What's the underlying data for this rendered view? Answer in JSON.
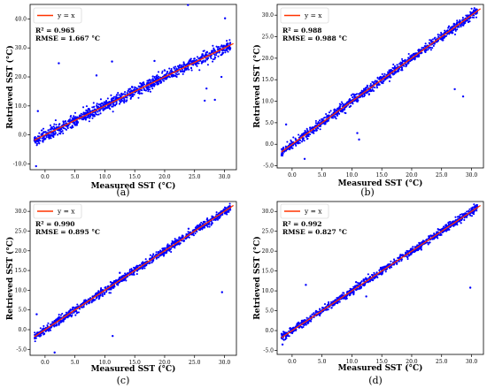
{
  "chart_data": [
    {
      "type": "scatter",
      "panel_label": "(a)",
      "xlabel": "Measured SST (°C)",
      "ylabel": "Retrieved SST (°C)",
      "xlim": [
        -2.5,
        32.0
      ],
      "ylim": [
        -12.0,
        45.0
      ],
      "x_ticks": [
        0,
        5,
        10,
        15,
        20,
        25,
        30
      ],
      "x_tick_labels": [
        "0.0",
        "5.0",
        "10.0",
        "15.0",
        "20.0",
        "25.0",
        "30.0"
      ],
      "y_ticks": [
        -10,
        0,
        10,
        20,
        30,
        40
      ],
      "y_tick_labels": [
        "-10.0",
        "0.0",
        "10.0",
        "20.0",
        "30.0",
        "40.0"
      ],
      "legend": {
        "label": "y = x",
        "placement": "top-left"
      },
      "stats": [
        "R² = 0.965",
        "RMSE = 1.667 °C"
      ],
      "series": [
        {
          "kind": "points",
          "color": "#0000ff",
          "x_range": [
            -1.8,
            31.0
          ],
          "noise_sd": 1.8,
          "count": 1100
        },
        {
          "kind": "outliers",
          "color": "#0000ff",
          "x": [
            23.9,
            11.2,
            30.1,
            -1.5,
            2.3,
            26.7,
            28.4,
            8.6,
            18.3,
            29.5,
            27.0,
            -1.2
          ],
          "y": [
            44.8,
            25.3,
            40.2,
            -10.8,
            24.7,
            11.8,
            12.1,
            20.5,
            25.5,
            20.0,
            16.0,
            8.2
          ]
        },
        {
          "kind": "line",
          "name": "y = x",
          "color": "#ff3300",
          "x": [
            -1.8,
            31.5
          ],
          "y": [
            -1.8,
            31.5
          ]
        }
      ]
    },
    {
      "type": "scatter",
      "panel_label": "(b)",
      "xlabel": "Measured SST (°C)",
      "ylabel": "Retrieved SST (°C)",
      "xlim": [
        -2.5,
        32.0
      ],
      "ylim": [
        -5.5,
        32.5
      ],
      "x_ticks": [
        0,
        5,
        10,
        15,
        20,
        25,
        30
      ],
      "x_tick_labels": [
        "0.0",
        "5.0",
        "10.0",
        "15.0",
        "20.0",
        "25.0",
        "30.0"
      ],
      "y_ticks": [
        -5,
        0,
        5,
        10,
        15,
        20,
        25,
        30
      ],
      "y_tick_labels": [
        "-5.0",
        "0.0",
        "5.0",
        "10.0",
        "15.0",
        "20.0",
        "25.0",
        "30.0"
      ],
      "legend": {
        "label": "y = x",
        "placement": "top-left"
      },
      "stats": [
        "R² = 0.988",
        "RMSE = 0.988 °C"
      ],
      "series": [
        {
          "kind": "points",
          "color": "#0000ff",
          "x_range": [
            -1.8,
            31.0
          ],
          "noise_sd": 1.0,
          "count": 1100
        },
        {
          "kind": "outliers",
          "color": "#0000ff",
          "x": [
            27.2,
            28.6,
            10.9,
            11.2,
            -1.0,
            2.1,
            6.0
          ],
          "y": [
            12.8,
            11.1,
            2.6,
            1.1,
            4.6,
            -3.4,
            5.5
          ]
        },
        {
          "kind": "line",
          "name": "y = x",
          "color": "#ff3300",
          "x": [
            -1.8,
            31.5
          ],
          "y": [
            -1.8,
            31.5
          ]
        }
      ]
    },
    {
      "type": "scatter",
      "panel_label": "(c)",
      "xlabel": "Measured SST (°C)",
      "ylabel": "Retrieved SST (°C)",
      "xlim": [
        -2.5,
        32.0
      ],
      "ylim": [
        -6.5,
        32.5
      ],
      "x_ticks": [
        0,
        5,
        10,
        15,
        20,
        25,
        30
      ],
      "x_tick_labels": [
        "0.0",
        "5.0",
        "10.0",
        "15.0",
        "20.0",
        "25.0",
        "30.0"
      ],
      "y_ticks": [
        -5,
        0,
        5,
        10,
        15,
        20,
        25,
        30
      ],
      "y_tick_labels": [
        "-5.0",
        "0.0",
        "5.0",
        "10.0",
        "15.0",
        "20.0",
        "25.0",
        "30.0"
      ],
      "legend": {
        "label": "y = x",
        "placement": "top-left"
      },
      "stats": [
        "R² = 0.990",
        "RMSE = 0.895 °C"
      ],
      "series": [
        {
          "kind": "points",
          "color": "#0000ff",
          "x_range": [
            -1.8,
            31.0
          ],
          "noise_sd": 0.9,
          "count": 1100
        },
        {
          "kind": "outliers",
          "color": "#0000ff",
          "x": [
            29.6,
            11.3,
            1.6,
            -1.4,
            24.0,
            12.5
          ],
          "y": [
            9.5,
            -1.6,
            -5.8,
            3.9,
            25.6,
            14.4
          ]
        },
        {
          "kind": "line",
          "name": "y = x",
          "color": "#ff3300",
          "x": [
            -1.8,
            31.5
          ],
          "y": [
            -1.8,
            31.5
          ]
        }
      ]
    },
    {
      "type": "scatter",
      "panel_label": "(d)",
      "xlabel": "Measured SST (°C)",
      "ylabel": "Retrieved SST (°C)",
      "xlim": [
        -2.5,
        32.0
      ],
      "ylim": [
        -6.0,
        32.5
      ],
      "x_ticks": [
        0,
        5,
        10,
        15,
        20,
        25,
        30
      ],
      "x_tick_labels": [
        "0.0",
        "5.0",
        "10.0",
        "15.0",
        "20.0",
        "25.0",
        "30.0"
      ],
      "y_ticks": [
        -5,
        0,
        5,
        10,
        15,
        20,
        25,
        30
      ],
      "y_tick_labels": [
        "-5.0",
        "0.0",
        "5.0",
        "10.0",
        "15.0",
        "20.0",
        "25.0",
        "30.0"
      ],
      "legend": {
        "label": "y = x",
        "placement": "top-left"
      },
      "stats": [
        "R² = 0.992",
        "RMSE = 0.827 °C"
      ],
      "series": [
        {
          "kind": "points",
          "color": "#0000ff",
          "x_range": [
            -1.8,
            31.0
          ],
          "noise_sd": 0.8,
          "count": 1100
        },
        {
          "kind": "outliers",
          "color": "#0000ff",
          "x": [
            29.8,
            2.3,
            -1.6,
            10.7,
            12.4
          ],
          "y": [
            10.8,
            11.5,
            -3.5,
            12.2,
            8.6
          ]
        },
        {
          "kind": "line",
          "name": "y = x",
          "color": "#ff3300",
          "x": [
            -1.8,
            31.5
          ],
          "y": [
            -1.8,
            31.5
          ]
        }
      ]
    }
  ]
}
